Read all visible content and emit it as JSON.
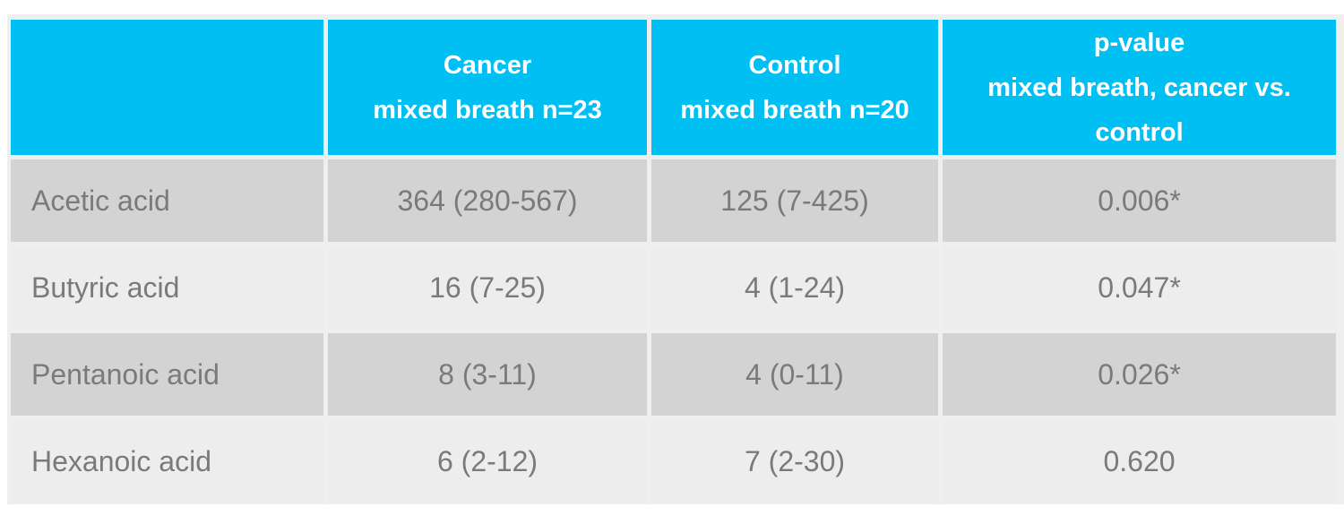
{
  "chart_data": {
    "type": "table",
    "columns": [
      "",
      "Cancer\nmixed breath n=23",
      "Control\nmixed breath n=20",
      "p-value\nmixed breath, cancer vs.\ncontrol"
    ],
    "rows": [
      {
        "label": "Acetic acid",
        "cancer": "364 (280-567)",
        "control": "125 (7-425)",
        "p_value": "0.006*"
      },
      {
        "label": "Butyric acid",
        "cancer": "16 (7-25)",
        "control": "4 (1-24)",
        "p_value": "0.047*"
      },
      {
        "label": "Pentanoic acid",
        "cancer": "8 (3-11)",
        "control": "4 (0-11)",
        "p_value": "0.026*"
      },
      {
        "label": "Hexanoic acid",
        "cancer": "6 (2-12)",
        "control": "7 (2-30)",
        "p_value": "0.620"
      }
    ]
  },
  "colors": {
    "header_bg": "#00bff2",
    "header_text": "#ffffff",
    "row_dark_bg": "#d3d3d3",
    "row_light_bg": "#ededed",
    "grid_gap": "#efefef",
    "body_text": "#7a7a7a"
  }
}
